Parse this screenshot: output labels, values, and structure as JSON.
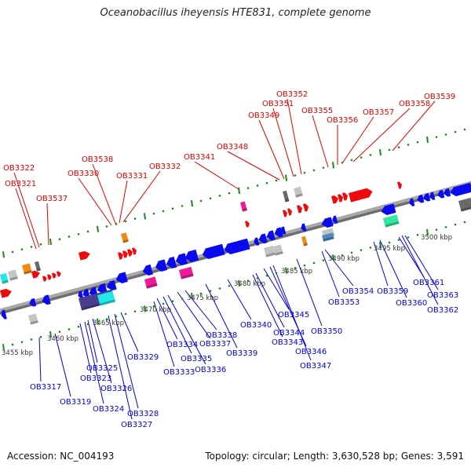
{
  "header": {
    "title": "Oceanobacillus iheyensis HTE831, complete genome"
  },
  "footer": {
    "accession": "Accession: NC_004193",
    "summary": "Topology: circular; Length: 3,630,528 bp; Genes: 3,591"
  },
  "colors": {
    "forward_label": "#e00000",
    "reverse_label": "#0000dd",
    "backbone": "#8c8c8c",
    "tick": "#1a8a1a",
    "gene_blue": "#0a0aee",
    "gene_red": "#ee0a0a",
    "gene_pink": "#ee1a96",
    "gene_orange": "#f08a10",
    "gene_gray": "#c4c4c4",
    "gene_darkgray": "#6a6a6a",
    "gene_cyan": "#20e8e8",
    "gene_purple": "#4a3f8e",
    "gene_green": "#30e8a0",
    "gene_steelblue": "#4d8cc0"
  },
  "scale": {
    "unit": "kbp",
    "ticks": [
      {
        "label": "3455 kbp",
        "kbp": 3455
      },
      {
        "label": "3460 kbp",
        "kbp": 3460
      },
      {
        "label": "3465 kbp",
        "kbp": 3465
      },
      {
        "label": "3470 kbp",
        "kbp": 3470
      },
      {
        "label": "3475 kbp",
        "kbp": 3475
      },
      {
        "label": "3480 kbp",
        "kbp": 3480
      },
      {
        "label": "3485 kbp",
        "kbp": 3485
      },
      {
        "label": "3490 kbp",
        "kbp": 3490
      },
      {
        "label": "3495 kbp",
        "kbp": 3495
      },
      {
        "label": "3500 kbp",
        "kbp": 3500
      }
    ]
  },
  "forward_labels": [
    "OB3322",
    "OB3321",
    "OB3537",
    "OB3330",
    "OB3538",
    "OB3331",
    "OB3332",
    "OB3341",
    "OB3348",
    "OB3349",
    "OB3351",
    "OB3352",
    "OB3355",
    "OB3356",
    "OB3357",
    "OB3358",
    "OB3539"
  ],
  "reverse_labels": [
    "OB3317",
    "OB3319",
    "OB3323",
    "OB3324",
    "OB3325",
    "OB3326",
    "OB3327",
    "OB3328",
    "OB3329",
    "OB3333",
    "OB3334",
    "OB3335",
    "OB3336",
    "OB3337",
    "OB3338",
    "OB3339",
    "OB3340",
    "OB3343",
    "OB3344",
    "OB3345",
    "OB3346",
    "OB3347",
    "OB3350",
    "OB3353",
    "OB3354",
    "OB3359",
    "OB3360",
    "OB3361",
    "OB3362",
    "OB3363"
  ]
}
